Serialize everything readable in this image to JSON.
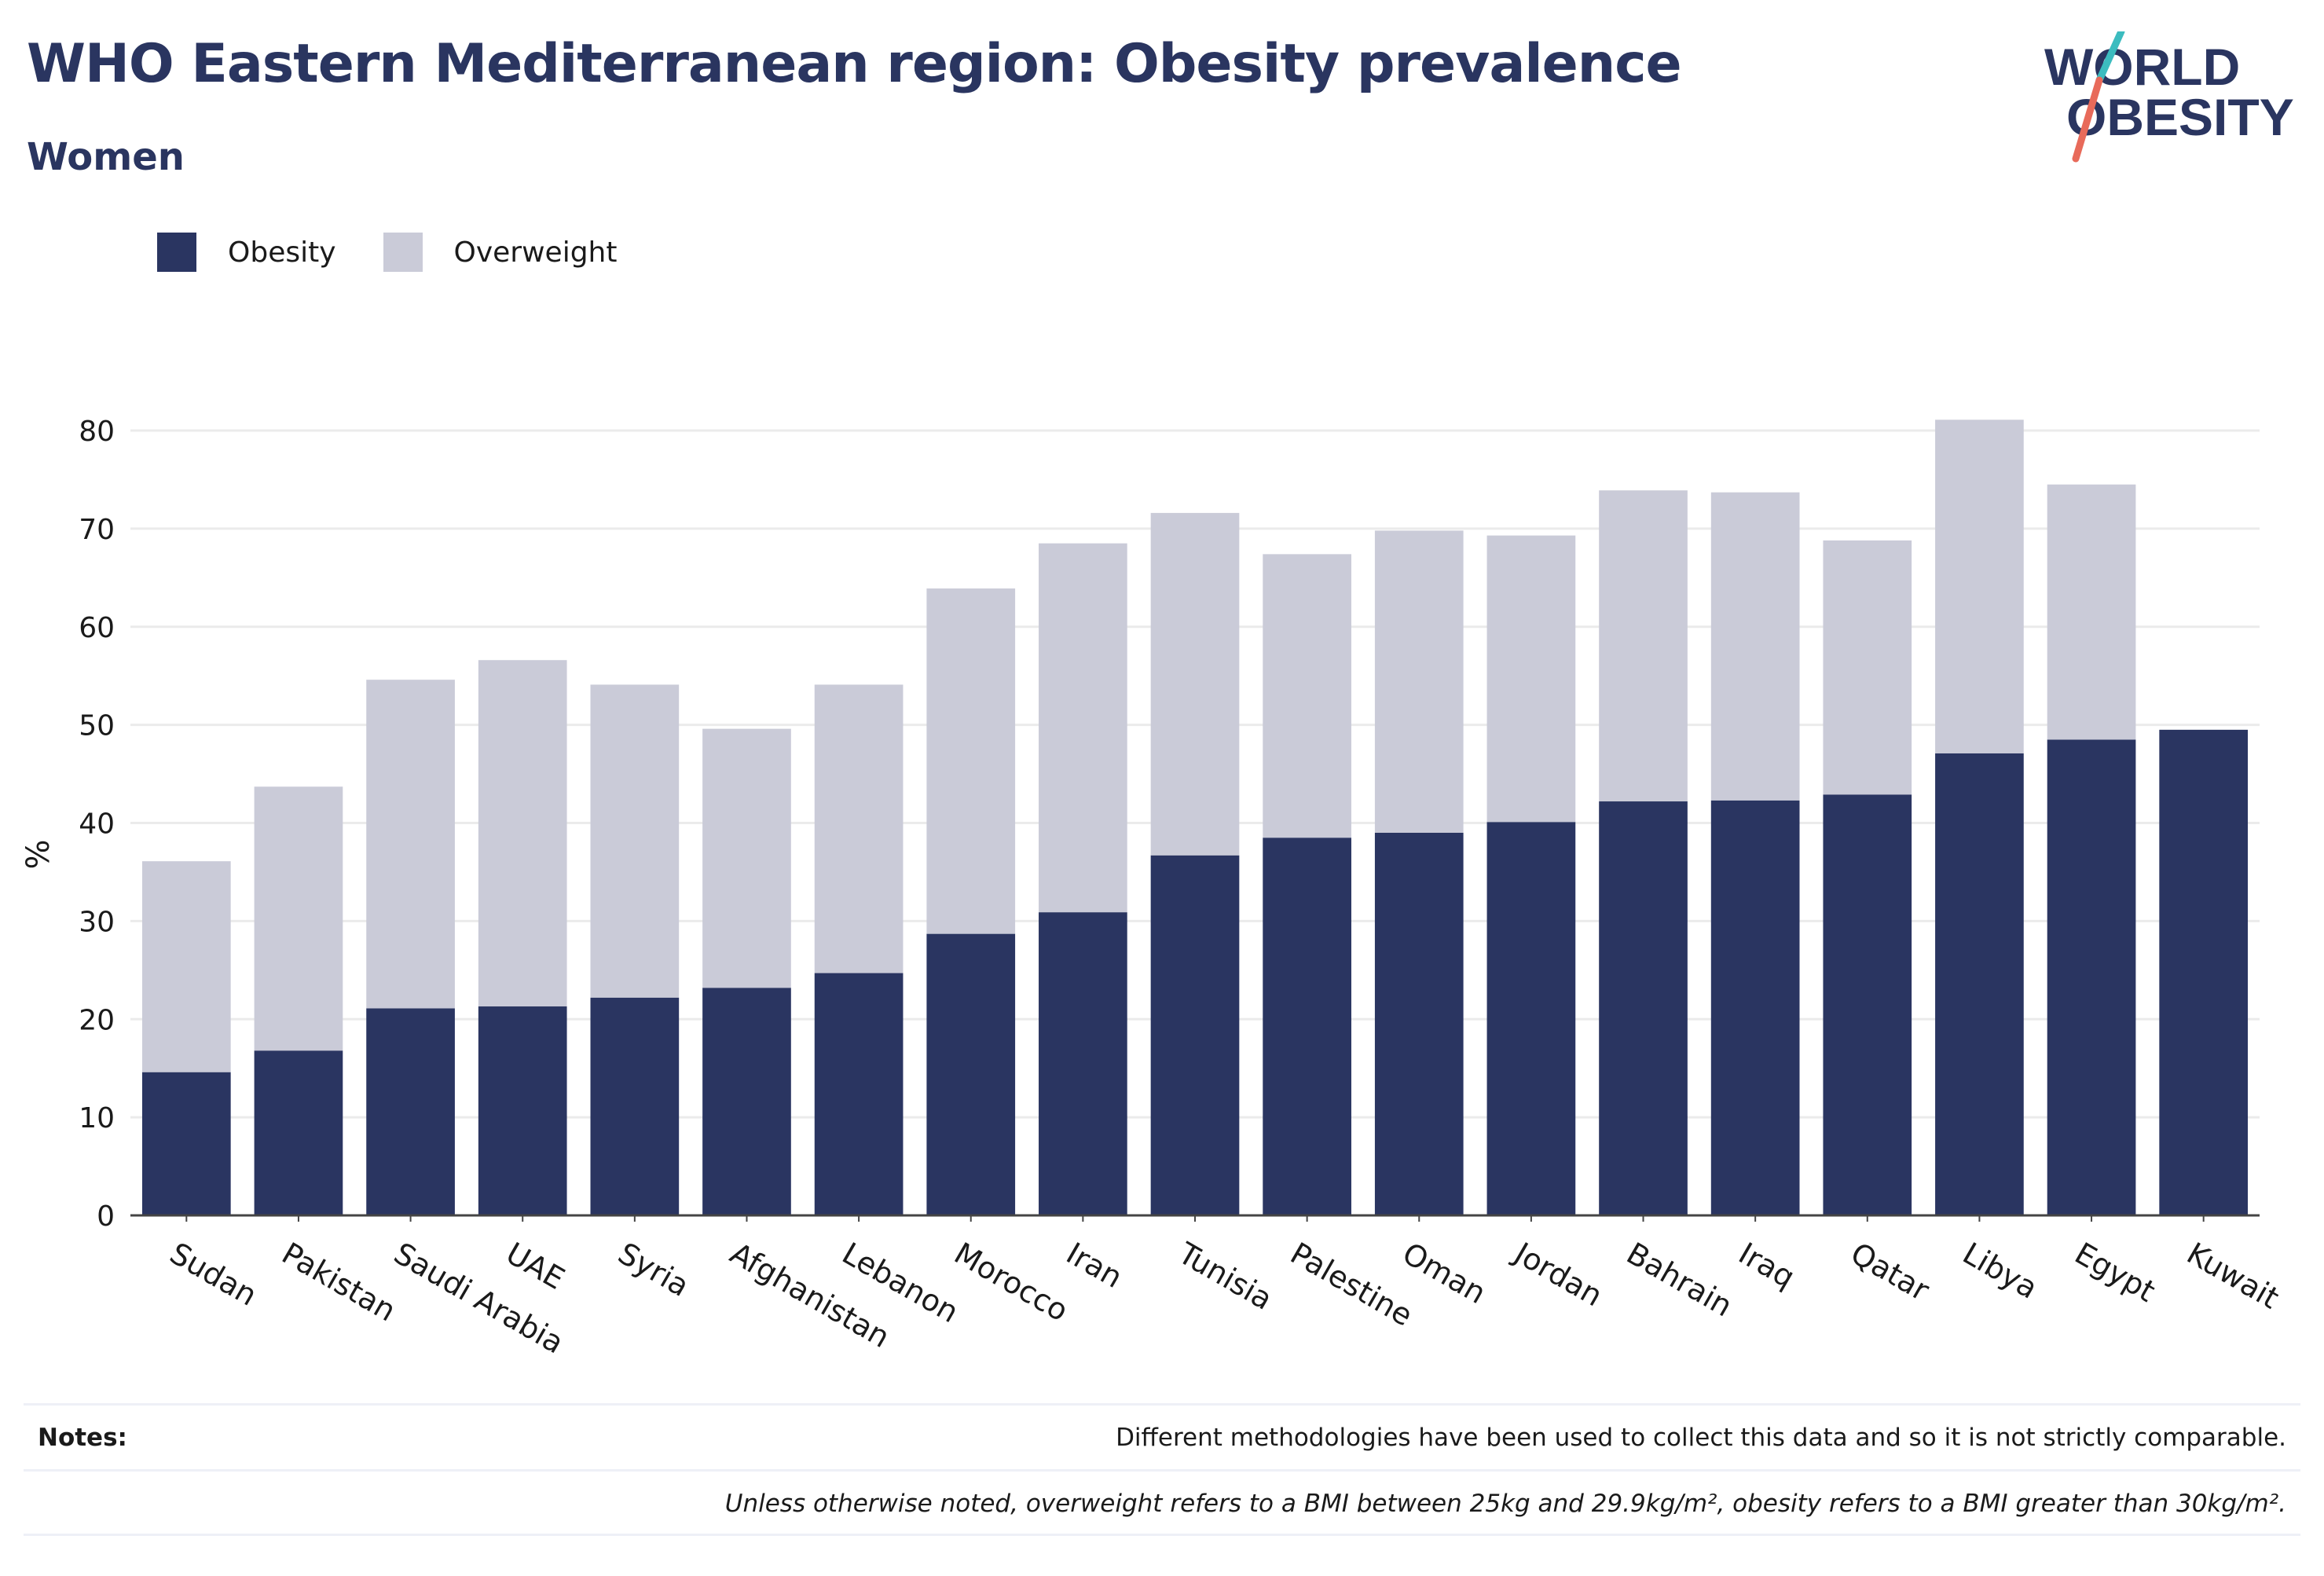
{
  "header": {
    "title": "WHO Eastern Mediterranean region: Obesity prevalence",
    "subtitle": "Women"
  },
  "logo": {
    "line1": "WORLD",
    "line2": "OBESITY"
  },
  "colors": {
    "obesity": "#2a3561",
    "overweight": "#cacbd8",
    "title": "#2a3560",
    "grid": "#ebebeb"
  },
  "legend": [
    {
      "label": "Obesity",
      "color": "#2a3561"
    },
    {
      "label": "Overweight",
      "color": "#cacbd8"
    }
  ],
  "chart_data": {
    "type": "bar",
    "stacked": true,
    "ylabel": "%",
    "xlabel": "",
    "ylim": [
      0,
      80
    ],
    "yticks": [
      0,
      10,
      20,
      30,
      40,
      50,
      60,
      70,
      80
    ],
    "grid": true,
    "legend_position": "top-left",
    "categories": [
      "Sudan",
      "Pakistan",
      "Saudi Arabia",
      "UAE",
      "Syria",
      "Afghanistan",
      "Lebanon",
      "Morocco",
      "Iran",
      "Tunisia",
      "Palestine",
      "Oman",
      "Jordan",
      "Bahrain",
      "Iraq",
      "Qatar",
      "Libya",
      "Egypt",
      "Kuwait"
    ],
    "series": [
      {
        "name": "Obesity",
        "values": [
          14.6,
          16.8,
          21.1,
          21.3,
          22.2,
          23.2,
          24.7,
          28.7,
          30.9,
          36.7,
          38.5,
          39.0,
          40.1,
          42.2,
          42.3,
          42.9,
          47.1,
          48.5,
          49.5
        ]
      },
      {
        "name": "Overweight",
        "values": [
          21.5,
          26.9,
          33.5,
          35.3,
          31.9,
          26.4,
          29.4,
          35.2,
          37.6,
          34.9,
          28.9,
          30.8,
          29.2,
          31.7,
          31.4,
          25.9,
          34.0,
          26.0,
          0
        ]
      }
    ]
  },
  "notes": {
    "label": "Notes:",
    "line1": "Different methodologies have been used to collect this data and so it is not strictly comparable.",
    "line2": "Unless otherwise noted, overweight refers to a BMI between 25kg and 29.9kg/m², obesity refers to a BMI greater than 30kg/m²."
  }
}
